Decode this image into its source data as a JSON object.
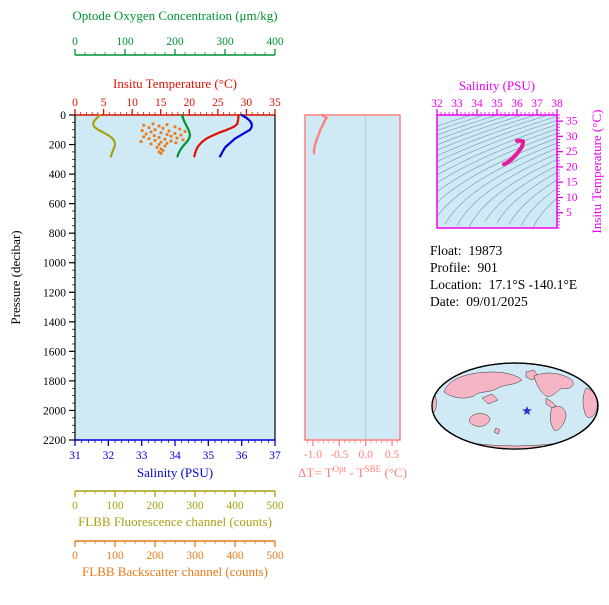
{
  "page": {
    "background": "#ffffff"
  },
  "info_panel": {
    "rows": [
      {
        "label": "Float:",
        "value": "19873"
      },
      {
        "label": "Profile:",
        "value": "901"
      },
      {
        "label": "Location:",
        "value": "17.1°S -140.1°E"
      },
      {
        "label": "Date:",
        "value": "09/01/2025"
      }
    ]
  },
  "delta_label": {
    "p1": "ΔT= T",
    "s1": "Opt",
    "p2": " - T",
    "s2": "SBE",
    "p3": " (°C)"
  },
  "colors": {
    "plot_background": "#cfeaf5",
    "oxygen": "#009233",
    "temperature": "#dd1100",
    "salinity": "#0000dd",
    "fluorescence": "#a8a014",
    "backscatter": "#e87a18",
    "delta": "#ff8080",
    "ts_axis": "#ee00ee",
    "ts_points": "#e8199a",
    "contours": "#7096b4",
    "pressure_axis": "#000000",
    "map_land": "#f5b5c5",
    "map_ocean": "#cfeaf5",
    "star": "#2233cc"
  },
  "chart_data": [
    {
      "id": "main-profiles",
      "type": "line",
      "title": "",
      "ylabel": "Pressure (decibar)",
      "ylim": [
        0,
        2200
      ],
      "yticks": [
        "0",
        "200",
        "400",
        "600",
        "800",
        "1000",
        "1200",
        "1400",
        "1600",
        "1800",
        "2000",
        "2200"
      ],
      "pressure_grid": [
        0,
        20,
        40,
        60,
        80,
        100,
        120,
        140,
        160,
        180,
        200,
        220,
        240,
        260,
        280
      ],
      "x_axes": [
        {
          "key": "oxygen",
          "label": "Optode Oxygen Concentration (μm/kg)",
          "range": [
            0,
            400
          ],
          "ticks": [
            "0",
            "100",
            "200",
            "300",
            "400"
          ]
        },
        {
          "key": "temperature",
          "label": "Insitu Temperature (°C)",
          "range": [
            0,
            35
          ],
          "ticks": [
            "0",
            "5",
            "10",
            "15",
            "20",
            "25",
            "30",
            "35"
          ]
        },
        {
          "key": "salinity",
          "label": "Salinity (PSU)",
          "range": [
            31,
            37
          ],
          "ticks": [
            "31",
            "32",
            "33",
            "34",
            "35",
            "36",
            "37"
          ]
        },
        {
          "key": "fluorescence",
          "label": "FLBB Fluorescence channel (counts)",
          "range": [
            0,
            500
          ],
          "ticks": [
            "0",
            "100",
            "200",
            "300",
            "400",
            "500"
          ]
        },
        {
          "key": "backscatter",
          "label": "FLBB Backscatter channel (counts)",
          "range": [
            0,
            500
          ],
          "ticks": [
            "0",
            "100",
            "200",
            "300",
            "400",
            "500"
          ]
        }
      ],
      "series": [
        {
          "axis": "oxygen",
          "style": "line",
          "values": [
            214,
            216,
            218,
            221,
            224,
            227,
            229,
            230,
            228,
            224,
            219,
            214,
            210,
            207,
            205
          ]
        },
        {
          "axis": "temperature",
          "style": "line",
          "values": [
            28.6,
            28.6,
            28.5,
            28.4,
            27.8,
            26.6,
            25.2,
            24.0,
            23.0,
            22.3,
            21.8,
            21.4,
            21.2,
            21.0,
            20.9
          ]
        },
        {
          "axis": "salinity",
          "style": "line",
          "values": [
            36.0,
            36.15,
            36.25,
            36.3,
            36.3,
            36.25,
            36.1,
            35.95,
            35.8,
            35.7,
            35.6,
            35.5,
            35.45,
            35.4,
            35.35
          ]
        },
        {
          "axis": "fluorescence",
          "style": "line",
          "values": [
            62,
            55,
            48,
            45,
            48,
            58,
            72,
            85,
            94,
            99,
            100,
            98,
            95,
            92,
            90
          ]
        },
        {
          "axis": "backscatter",
          "style": "scatter",
          "points": {
            "pressure": [
              60,
              65,
              70,
              75,
              80,
              85,
              90,
              95,
              100,
              105,
              108,
              112,
              115,
              120,
              125,
              128,
              132,
              136,
              140,
              144,
              148,
              152,
              156,
              160,
              164,
              168,
              172,
              176,
              180,
              184,
              188,
              192,
              196,
              200,
              210,
              220,
              230,
              240,
              250,
              260
            ],
            "values": [
              195,
              230,
              172,
              210,
              250,
              185,
              220,
              262,
              200,
              168,
              235,
              275,
              190,
              215,
              250,
              178,
              230,
              265,
              198,
              240,
              172,
              210,
              255,
              185,
              225,
              270,
              200,
              240,
              165,
              215,
              252,
              230,
              190,
              210,
              225,
              205,
              215,
              220,
              210,
              215
            ]
          }
        }
      ]
    },
    {
      "id": "delta-t",
      "type": "line",
      "xlabel": "ΔT= T^Opt - T^SBE (°C)",
      "xlim": [
        -1.15,
        0.65
      ],
      "xticks": [
        "-1.0",
        "-0.5",
        "0.0",
        "0.5"
      ],
      "ylim": [
        0,
        2200
      ],
      "series": [
        {
          "name": "delta-t",
          "style": "line",
          "pressure": [
            0,
            20,
            40,
            60,
            80,
            100,
            120,
            140,
            160,
            180,
            200,
            220,
            240,
            260
          ],
          "values": [
            -0.82,
            -0.74,
            -0.78,
            -0.8,
            -0.83,
            -0.86,
            -0.88,
            -0.9,
            -0.92,
            -0.94,
            -0.96,
            -0.97,
            -0.98,
            -0.98
          ]
        }
      ]
    },
    {
      "id": "ts-diagram",
      "type": "scatter",
      "xlabel": "Salinity (PSU)",
      "ylabel_right": "Insitu Temperature (°C)",
      "xlim": [
        32,
        38
      ],
      "xticks": [
        "32",
        "33",
        "34",
        "35",
        "36",
        "37",
        "38"
      ],
      "ylim": [
        0,
        37
      ],
      "yticks": [
        "5",
        "10",
        "15",
        "20",
        "25",
        "30",
        "35"
      ],
      "points": {
        "salinity": [
          36.0,
          36.15,
          36.25,
          36.3,
          36.3,
          36.25,
          36.1,
          35.95,
          35.8,
          35.7,
          35.6,
          35.5,
          35.45,
          35.4,
          35.35
        ],
        "temperature": [
          28.6,
          28.6,
          28.5,
          28.4,
          27.8,
          26.6,
          25.2,
          24.0,
          23.0,
          22.3,
          21.8,
          21.4,
          21.2,
          21.0,
          20.9
        ]
      },
      "contour_values": [
        19,
        19.5,
        20,
        20.5,
        21,
        21.5,
        22,
        22.5,
        23,
        23.5,
        24,
        24.5,
        25,
        25.5,
        26,
        26.5,
        27,
        27.5,
        28,
        28.5,
        29,
        29.5
      ]
    }
  ]
}
